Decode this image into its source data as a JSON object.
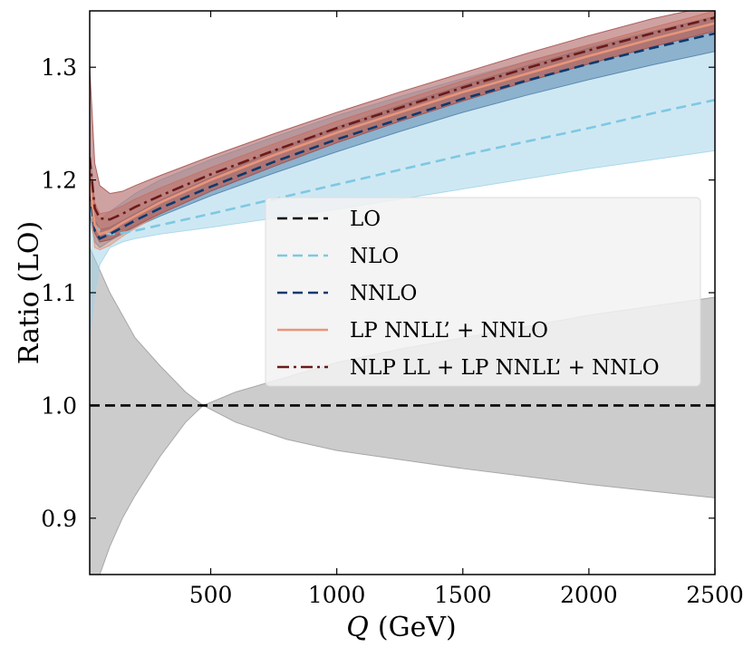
{
  "chart_data": {
    "type": "line",
    "title": "",
    "xlabel": "Q",
    "xlabel_unit": "(GeV)",
    "ylabel": "Ratio (LO)",
    "xlim": [
      20,
      2500
    ],
    "ylim": [
      0.85,
      1.35
    ],
    "xticks": [
      500,
      1000,
      1500,
      2000,
      2500
    ],
    "yticks": [
      0.9,
      1.0,
      1.1,
      1.2,
      1.3
    ],
    "xtick_labels": [
      "500",
      "1000",
      "1500",
      "2000",
      "2500"
    ],
    "ytick_labels": [
      "0.9",
      "1.0",
      "1.1",
      "1.2",
      "1.3"
    ],
    "legend_position": "center-right",
    "series": [
      {
        "name": "LO",
        "color": "#000000",
        "style": "dashed",
        "band_color": "#999999",
        "x": [
          20,
          40,
          60,
          100,
          150,
          200,
          300,
          400,
          470,
          600,
          800,
          1000,
          1250,
          1500,
          1750,
          2000,
          2250,
          2500
        ],
        "values": [
          1.0,
          1.0,
          1.0,
          1.0,
          1.0,
          1.0,
          1.0,
          1.0,
          1.0,
          1.0,
          1.0,
          1.0,
          1.0,
          1.0,
          1.0,
          1.0,
          1.0,
          1.0
        ],
        "lower": [
          0.83,
          0.83,
          0.85,
          0.875,
          0.9,
          0.92,
          0.955,
          0.985,
          1.0,
          0.985,
          0.97,
          0.96,
          0.952,
          0.944,
          0.937,
          0.93,
          0.924,
          0.918
        ],
        "upper": [
          1.14,
          1.13,
          1.12,
          1.1,
          1.08,
          1.06,
          1.035,
          1.012,
          1.0,
          1.012,
          1.025,
          1.038,
          1.05,
          1.06,
          1.07,
          1.08,
          1.088,
          1.096
        ]
      },
      {
        "name": "NLO",
        "color": "#7ec8e3",
        "style": "dashed",
        "band_color": "#9ed2e8",
        "x": [
          20,
          40,
          60,
          100,
          150,
          200,
          300,
          500,
          750,
          1000,
          1250,
          1500,
          1750,
          2000,
          2250,
          2500
        ],
        "values": [
          1.175,
          1.16,
          1.155,
          1.152,
          1.153,
          1.155,
          1.16,
          1.17,
          1.183,
          1.196,
          1.209,
          1.222,
          1.234,
          1.246,
          1.259,
          1.271
        ],
        "lower": [
          1.06,
          1.1,
          1.125,
          1.14,
          1.145,
          1.148,
          1.152,
          1.158,
          1.166,
          1.174,
          1.183,
          1.192,
          1.201,
          1.21,
          1.218,
          1.226
        ],
        "upper": [
          1.23,
          1.17,
          1.165,
          1.172,
          1.18,
          1.188,
          1.2,
          1.218,
          1.238,
          1.257,
          1.274,
          1.29,
          1.305,
          1.319,
          1.332,
          1.345
        ]
      },
      {
        "name": "NNLO",
        "color": "#0b3a6e",
        "style": "dashed",
        "band_color": "#4a7ba8",
        "x": [
          20,
          40,
          60,
          100,
          150,
          200,
          300,
          500,
          750,
          1000,
          1250,
          1500,
          1750,
          2000,
          2250,
          2500
        ],
        "values": [
          1.19,
          1.155,
          1.148,
          1.152,
          1.158,
          1.164,
          1.175,
          1.194,
          1.216,
          1.236,
          1.254,
          1.272,
          1.288,
          1.303,
          1.317,
          1.33
        ],
        "lower": [
          1.17,
          1.145,
          1.14,
          1.146,
          1.152,
          1.158,
          1.168,
          1.186,
          1.206,
          1.225,
          1.243,
          1.26,
          1.275,
          1.289,
          1.302,
          1.314
        ],
        "upper": [
          1.21,
          1.165,
          1.156,
          1.158,
          1.164,
          1.17,
          1.182,
          1.202,
          1.226,
          1.247,
          1.266,
          1.284,
          1.301,
          1.317,
          1.331,
          1.345
        ]
      },
      {
        "name": "LP NNLL’ + NNLO",
        "color": "#e8957a",
        "style": "solid",
        "band_color": "#e8957a",
        "x": [
          20,
          40,
          60,
          100,
          150,
          200,
          300,
          500,
          750,
          1000,
          1250,
          1500,
          1750,
          2000,
          2250,
          2500
        ],
        "values": [
          1.2,
          1.16,
          1.152,
          1.155,
          1.162,
          1.168,
          1.18,
          1.2,
          1.222,
          1.242,
          1.26,
          1.278,
          1.294,
          1.31,
          1.325,
          1.339
        ],
        "lower": [
          1.18,
          1.14,
          1.138,
          1.142,
          1.15,
          1.157,
          1.17,
          1.192,
          1.214,
          1.234,
          1.253,
          1.271,
          1.288,
          1.304,
          1.319,
          1.333
        ],
        "upper": [
          1.22,
          1.18,
          1.17,
          1.172,
          1.177,
          1.183,
          1.193,
          1.211,
          1.232,
          1.252,
          1.27,
          1.288,
          1.305,
          1.32,
          1.335,
          1.35
        ]
      },
      {
        "name": "NLP LL + LP NNLL’ + NNLO",
        "color": "#6b1a1a",
        "style": "dashdot",
        "band_color": "#a04646",
        "x": [
          20,
          40,
          60,
          100,
          150,
          200,
          300,
          500,
          750,
          1000,
          1250,
          1500,
          1750,
          2000,
          2250,
          2500
        ],
        "values": [
          1.22,
          1.175,
          1.166,
          1.165,
          1.17,
          1.176,
          1.186,
          1.205,
          1.226,
          1.246,
          1.264,
          1.282,
          1.299,
          1.315,
          1.33,
          1.344
        ],
        "lower": [
          1.19,
          1.153,
          1.145,
          1.147,
          1.153,
          1.159,
          1.17,
          1.19,
          1.212,
          1.233,
          1.252,
          1.27,
          1.287,
          1.303,
          1.318,
          1.332
        ],
        "upper": [
          1.3,
          1.215,
          1.195,
          1.188,
          1.19,
          1.195,
          1.204,
          1.221,
          1.241,
          1.26,
          1.278,
          1.295,
          1.312,
          1.328,
          1.343,
          1.355
        ]
      }
    ]
  }
}
